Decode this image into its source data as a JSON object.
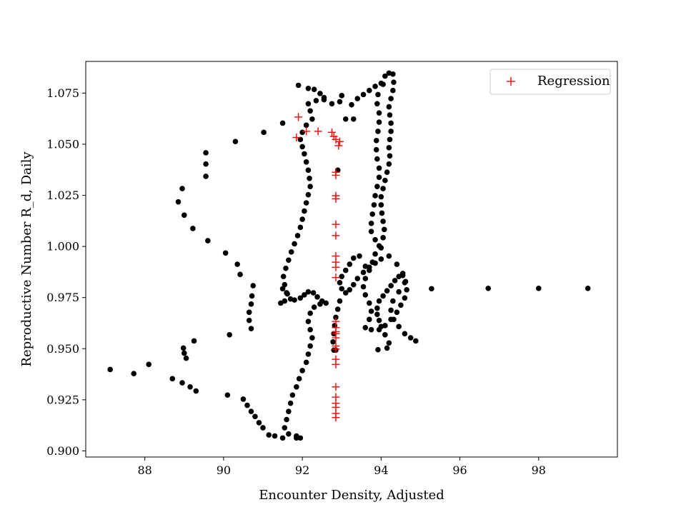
{
  "chart_data": {
    "type": "scatter",
    "xlabel": "Encounter Density, Adjusted",
    "ylabel": "Reproductive Number R_d, Daily",
    "xlim": [
      86.5,
      100.0
    ],
    "ylim": [
      0.897,
      1.0905
    ],
    "x_ticks": [
      88,
      90,
      92,
      94,
      96,
      98
    ],
    "x_tick_labels": [
      "88",
      "90",
      "92",
      "94",
      "96",
      "98"
    ],
    "y_ticks": [
      0.9,
      0.925,
      0.95,
      0.975,
      1.0,
      1.025,
      1.05,
      1.075
    ],
    "y_tick_labels": [
      "0.900",
      "0.925",
      "0.950",
      "0.975",
      "1.000",
      "1.025",
      "1.050",
      "1.075"
    ],
    "grid": false,
    "legend_position": "top-right",
    "colors": {
      "observed": "#000000",
      "regression": "#ff0000"
    },
    "series": [
      {
        "marker": "dot",
        "color": "#000000",
        "points": [
          [
            99.25,
            0.9795
          ],
          [
            98.0,
            0.9795
          ],
          [
            96.72,
            0.9795
          ],
          [
            95.28,
            0.9793
          ],
          [
            94.88,
            0.9538
          ],
          [
            94.75,
            0.9553
          ],
          [
            94.6,
            0.9573
          ],
          [
            94.45,
            0.9608
          ],
          [
            94.32,
            0.9643
          ],
          [
            94.25,
            0.9688
          ],
          [
            94.3,
            0.9733
          ],
          [
            94.45,
            0.9778
          ],
          [
            94.6,
            0.9823
          ],
          [
            94.55,
            0.9868
          ],
          [
            94.4,
            0.9913
          ],
          [
            94.2,
            0.9953
          ],
          [
            94.0,
            0.9993
          ],
          [
            93.85,
            1.0033
          ],
          [
            93.75,
            1.0073
          ],
          [
            93.75,
            1.0113
          ],
          [
            93.78,
            1.0158
          ],
          [
            93.82,
            1.0203
          ],
          [
            93.85,
            1.0248
          ],
          [
            93.9,
            1.0293
          ],
          [
            93.95,
            1.0338
          ],
          [
            93.95,
            1.0383
          ],
          [
            93.9,
            1.0428
          ],
          [
            93.88,
            1.0473
          ],
          [
            93.88,
            1.0518
          ],
          [
            93.92,
            1.0563
          ],
          [
            93.95,
            1.0608
          ],
          [
            93.95,
            1.0653
          ],
          [
            93.9,
            1.0698
          ],
          [
            93.92,
            1.0743
          ],
          [
            94.05,
            1.0793
          ],
          [
            94.1,
            1.0833
          ],
          [
            94.2,
            1.0848
          ],
          [
            94.3,
            1.0843
          ],
          [
            94.32,
            1.0803
          ],
          [
            94.3,
            1.0763
          ],
          [
            94.25,
            1.0723
          ],
          [
            94.2,
            1.0683
          ],
          [
            94.22,
            1.0643
          ],
          [
            94.25,
            1.0603
          ],
          [
            94.25,
            1.0563
          ],
          [
            94.22,
            1.0523
          ],
          [
            94.2,
            1.0483
          ],
          [
            94.22,
            1.0443
          ],
          [
            94.2,
            1.0403
          ],
          [
            94.15,
            1.0363
          ],
          [
            94.1,
            1.0323
          ],
          [
            94.05,
            1.0283
          ],
          [
            94.0,
            1.0243
          ],
          [
            94.0,
            1.0203
          ],
          [
            94.02,
            1.0163
          ],
          [
            94.05,
            1.0123
          ],
          [
            94.08,
            1.0083
          ],
          [
            94.05,
            1.0043
          ],
          [
            93.95,
            1.0003
          ],
          [
            93.85,
            0.9963
          ],
          [
            93.78,
            0.9923
          ],
          [
            93.7,
            0.9883
          ],
          [
            93.6,
            0.9843
          ],
          [
            93.55,
            0.9803
          ],
          [
            93.6,
            0.9763
          ],
          [
            93.7,
            0.9723
          ],
          [
            93.75,
            0.9683
          ],
          [
            93.7,
            0.9643
          ],
          [
            93.6,
            0.9603
          ],
          [
            93.75,
            0.9593
          ],
          [
            93.95,
            0.9593
          ],
          [
            94.1,
            0.9613
          ],
          [
            94.25,
            0.9643
          ],
          [
            94.4,
            0.9678
          ],
          [
            94.5,
            0.9713
          ],
          [
            94.6,
            0.9748
          ],
          [
            94.65,
            0.9788
          ],
          [
            94.62,
            0.9828
          ],
          [
            94.55,
            0.9858
          ],
          [
            94.45,
            0.9853
          ],
          [
            94.35,
            0.9833
          ],
          [
            94.25,
            0.9808
          ],
          [
            94.15,
            0.9783
          ],
          [
            94.05,
            0.9758
          ],
          [
            93.95,
            0.9733
          ],
          [
            93.9,
            0.9698
          ],
          [
            93.9,
            0.9668
          ],
          [
            93.95,
            0.9638
          ],
          [
            94.0,
            0.9608
          ],
          [
            94.1,
            0.9568
          ],
          [
            94.2,
            0.9528
          ],
          [
            94.15,
            0.9503
          ],
          [
            93.92,
            0.9495
          ],
          [
            93.6,
            0.9903
          ],
          [
            93.45,
            0.9953
          ],
          [
            93.3,
            0.9943
          ],
          [
            93.2,
            0.9913
          ],
          [
            93.1,
            0.9883
          ],
          [
            93.0,
            0.9853
          ],
          [
            92.95,
            0.9823
          ],
          [
            93.0,
            0.9793
          ],
          [
            93.1,
            0.9773
          ],
          [
            93.2,
            0.9788
          ],
          [
            93.3,
            0.9813
          ],
          [
            93.4,
            0.9843
          ],
          [
            93.55,
            0.9873
          ],
          [
            93.7,
            0.9898
          ],
          [
            93.85,
            0.9918
          ],
          [
            94.0,
            0.9938
          ],
          [
            92.95,
            0.9733
          ],
          [
            92.9,
            0.9693
          ],
          [
            92.85,
            0.9653
          ],
          [
            92.82,
            0.9613
          ],
          [
            92.8,
            0.9573
          ],
          [
            92.78,
            0.9533
          ],
          [
            92.8,
            0.9493
          ],
          [
            92.85,
            0.9493
          ],
          [
            92.9,
            1.0373
          ],
          [
            93.1,
            1.0623
          ],
          [
            93.25,
            1.0693
          ],
          [
            93.4,
            1.0723
          ],
          [
            93.55,
            1.0743
          ],
          [
            93.7,
            1.0763
          ],
          [
            93.85,
            1.0783
          ],
          [
            94.0,
            1.0798
          ],
          [
            91.9,
            1.0788
          ],
          [
            92.15,
            1.0773
          ],
          [
            92.3,
            1.0768
          ],
          [
            92.45,
            1.0748
          ],
          [
            92.55,
            1.0718
          ],
          [
            92.35,
            1.0713
          ],
          [
            92.15,
            1.0698
          ],
          [
            92.2,
            1.0663
          ],
          [
            92.25,
            1.0623
          ],
          [
            92.1,
            1.0593
          ],
          [
            92.0,
            1.0558
          ],
          [
            91.95,
            1.0523
          ],
          [
            92.0,
            1.0488
          ],
          [
            92.05,
            1.0453
          ],
          [
            92.1,
            1.0413
          ],
          [
            92.15,
            1.0373
          ],
          [
            92.18,
            1.0333
          ],
          [
            92.2,
            1.0293
          ],
          [
            92.15,
            1.0253
          ],
          [
            92.1,
            1.0213
          ],
          [
            92.05,
            1.0173
          ],
          [
            92.0,
            1.0133
          ],
          [
            91.95,
            1.0093
          ],
          [
            91.88,
            1.0053
          ],
          [
            91.8,
            1.0013
          ],
          [
            91.72,
            0.9973
          ],
          [
            91.65,
            0.9933
          ],
          [
            91.58,
            0.9893
          ],
          [
            91.52,
            0.9853
          ],
          [
            91.55,
            0.9813
          ],
          [
            91.6,
            0.9773
          ],
          [
            91.7,
            0.9743
          ],
          [
            91.55,
            0.9733
          ],
          [
            91.45,
            0.9723
          ],
          [
            91.8,
            0.9738
          ],
          [
            91.95,
            0.9748
          ],
          [
            92.05,
            0.9763
          ],
          [
            92.15,
            0.9778
          ],
          [
            92.28,
            0.9773
          ],
          [
            92.38,
            0.9753
          ],
          [
            92.5,
            0.9733
          ],
          [
            92.6,
            0.9723
          ],
          [
            92.45,
            0.9718
          ],
          [
            92.3,
            0.9703
          ],
          [
            92.2,
            0.9673
          ],
          [
            92.15,
            0.9633
          ],
          [
            92.2,
            0.9593
          ],
          [
            92.25,
            0.9553
          ],
          [
            92.2,
            0.9513
          ],
          [
            92.15,
            0.9473
          ],
          [
            92.1,
            0.9433
          ],
          [
            92.0,
            0.9393
          ],
          [
            91.92,
            0.9353
          ],
          [
            91.85,
            0.9313
          ],
          [
            91.75,
            0.9273
          ],
          [
            91.7,
            0.9233
          ],
          [
            91.65,
            0.9193
          ],
          [
            91.6,
            0.9153
          ],
          [
            91.55,
            0.9113
          ],
          [
            91.65,
            0.9083
          ],
          [
            91.85,
            0.9073
          ],
          [
            91.95,
            0.9063
          ],
          [
            91.85,
            0.9063
          ],
          [
            91.5,
            0.9063
          ],
          [
            91.3,
            0.9073
          ],
          [
            91.15,
            0.9078
          ],
          [
            91.0,
            0.9113
          ],
          [
            90.9,
            0.9138
          ],
          [
            90.8,
            0.9168
          ],
          [
            90.7,
            0.9193
          ],
          [
            90.6,
            0.9223
          ],
          [
            90.5,
            0.9253
          ],
          [
            90.1,
            0.9273
          ],
          [
            89.3,
            0.9293
          ],
          [
            89.15,
            0.9313
          ],
          [
            88.95,
            0.9333
          ],
          [
            88.7,
            0.9353
          ],
          [
            88.1,
            0.9423
          ],
          [
            87.72,
            0.9378
          ],
          [
            87.12,
            0.9398
          ],
          [
            89.05,
            0.9453
          ],
          [
            89.0,
            0.9478
          ],
          [
            88.98,
            0.9503
          ],
          [
            89.25,
            0.9538
          ],
          [
            90.15,
            0.9568
          ],
          [
            90.7,
            0.9598
          ],
          [
            90.65,
            0.9638
          ],
          [
            90.65,
            0.9678
          ],
          [
            90.7,
            0.9718
          ],
          [
            90.72,
            0.9758
          ],
          [
            90.75,
            0.9808
          ],
          [
            90.42,
            0.9863
          ],
          [
            90.35,
            0.9913
          ],
          [
            90.05,
            0.9968
          ],
          [
            89.6,
            1.0028
          ],
          [
            89.22,
            1.0088
          ],
          [
            89.0,
            1.0153
          ],
          [
            88.95,
            1.0283
          ],
          [
            88.85,
            1.0218
          ],
          [
            89.55,
            1.0343
          ],
          [
            89.55,
            1.0403
          ],
          [
            89.55,
            1.0458
          ],
          [
            90.3,
            1.0513
          ],
          [
            91.02,
            1.0558
          ],
          [
            91.5,
            1.0603
          ],
          [
            92.55,
            1.0728
          ],
          [
            92.75,
            1.0698
          ],
          [
            92.95,
            1.0708
          ],
          [
            93.0,
            1.0738
          ],
          [
            93.3,
            1.0623
          ],
          [
            91.5,
            0.9793
          ],
          [
            91.62,
            0.9768
          ]
        ]
      },
      {
        "name": "Regression",
        "marker": "plus",
        "color": "#ff0000",
        "points": [
          [
            91.9,
            1.0633
          ],
          [
            91.85,
            1.0533
          ],
          [
            92.1,
            1.0563
          ],
          [
            92.4,
            1.0563
          ],
          [
            92.75,
            1.0558
          ],
          [
            92.8,
            1.0538
          ],
          [
            92.85,
            1.0523
          ],
          [
            92.95,
            1.0513
          ],
          [
            92.92,
            1.0493
          ],
          [
            92.85,
            1.0363
          ],
          [
            92.85,
            1.0348
          ],
          [
            92.85,
            1.0248
          ],
          [
            92.85,
            1.0233
          ],
          [
            92.85,
            1.0108
          ],
          [
            92.85,
            1.0053
          ],
          [
            92.85,
            0.9953
          ],
          [
            92.85,
            0.9923
          ],
          [
            92.85,
            0.9898
          ],
          [
            92.85,
            0.9848
          ],
          [
            92.85,
            0.9633
          ],
          [
            92.85,
            0.9603
          ],
          [
            92.85,
            0.9583
          ],
          [
            92.85,
            0.9573
          ],
          [
            92.85,
            0.9553
          ],
          [
            92.85,
            0.9513
          ],
          [
            92.85,
            0.9498
          ],
          [
            92.85,
            0.9448
          ],
          [
            92.85,
            0.9423
          ],
          [
            92.85,
            0.9313
          ],
          [
            92.85,
            0.9263
          ],
          [
            92.85,
            0.9233
          ],
          [
            92.85,
            0.9213
          ],
          [
            92.85,
            0.9183
          ],
          [
            92.85,
            0.9163
          ]
        ]
      }
    ]
  }
}
